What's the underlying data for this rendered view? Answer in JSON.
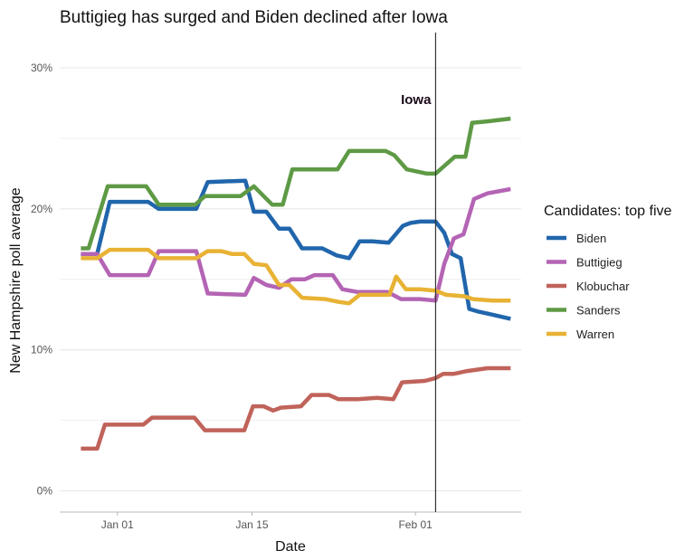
{
  "chart_data": {
    "type": "line",
    "title": "Buttigieg has surged and Biden declined after Iowa",
    "xlabel": "Date",
    "ylabel": "New Hampshire poll average",
    "x_unit": "days since Jan 01",
    "xlim": [
      -6,
      42
    ],
    "ylim": [
      -1.5,
      32.5
    ],
    "grid": true,
    "x_ticks": [
      {
        "value": 0,
        "label": "Jan 01"
      },
      {
        "value": 14,
        "label": "Jan 15"
      },
      {
        "value": 31,
        "label": "Feb 01"
      }
    ],
    "y_ticks": [
      {
        "value": 0,
        "label": "0%"
      },
      {
        "value": 10,
        "label": "10%"
      },
      {
        "value": 20,
        "label": "20%"
      },
      {
        "value": 30,
        "label": "30%"
      }
    ],
    "y_minor_gridlines": [
      5,
      15,
      25
    ],
    "annotations": [
      {
        "type": "vline",
        "x": 33.1,
        "label": "Iowa"
      }
    ],
    "legend": {
      "title": "Candidates: top five",
      "position": "right"
    },
    "series": [
      {
        "name": "Biden",
        "color": "#2166ac",
        "x": [
          -3.8,
          -2.1,
          -0.8,
          3.2,
          4.3,
          8.2,
          9.4,
          13.3,
          14.2,
          15.5,
          16.8,
          17.9,
          19.2,
          21.3,
          22.8,
          24.1,
          25.2,
          26.5,
          28.2,
          29.7,
          30.5,
          31.5,
          32.5,
          33.1,
          34.0,
          34.8,
          35.7,
          36.6,
          37.6,
          39.0,
          40.9
        ],
        "values": [
          16.8,
          16.8,
          20.5,
          20.5,
          20.0,
          20.0,
          21.9,
          22.0,
          19.8,
          19.8,
          18.6,
          18.6,
          17.2,
          17.2,
          16.7,
          16.5,
          17.7,
          17.7,
          17.6,
          18.8,
          19.0,
          19.1,
          19.1,
          19.1,
          18.3,
          16.8,
          16.5,
          12.9,
          12.7,
          12.5,
          12.2
        ]
      },
      {
        "name": "Buttigieg",
        "color": "#b464b4",
        "x": [
          -3.8,
          -2.1,
          -0.8,
          3.2,
          4.3,
          8.2,
          9.4,
          13.3,
          14.2,
          15.5,
          16.8,
          18.1,
          19.5,
          20.5,
          22.4,
          23.4,
          25.0,
          28.1,
          29.5,
          31.5,
          33.1,
          34.0,
          35.0,
          36.0,
          37.1,
          38.5,
          40.9
        ],
        "values": [
          16.8,
          16.8,
          15.3,
          15.3,
          17.0,
          17.0,
          14.0,
          13.9,
          15.1,
          14.6,
          14.4,
          15.0,
          15.0,
          15.3,
          15.3,
          14.3,
          14.1,
          14.1,
          13.6,
          13.6,
          13.5,
          16.1,
          17.9,
          18.2,
          20.7,
          21.1,
          21.4
        ]
      },
      {
        "name": "Klobuchar",
        "color": "#c0635a",
        "x": [
          -3.8,
          -2.1,
          -1.3,
          2.7,
          3.6,
          8.0,
          9.1,
          13.2,
          14.1,
          15.2,
          16.2,
          17.0,
          19.1,
          20.2,
          22.0,
          23.0,
          25.0,
          27.0,
          28.7,
          29.6,
          32.0,
          33.1,
          33.9,
          35.0,
          36.4,
          38.5,
          40.9
        ],
        "values": [
          3.0,
          3.0,
          4.7,
          4.7,
          5.2,
          5.2,
          4.3,
          4.3,
          6.0,
          6.0,
          5.7,
          5.9,
          6.0,
          6.8,
          6.8,
          6.5,
          6.5,
          6.6,
          6.5,
          7.7,
          7.8,
          8.0,
          8.3,
          8.3,
          8.5,
          8.7,
          8.7
        ]
      },
      {
        "name": "Sanders",
        "color": "#5e9a45",
        "x": [
          -3.8,
          -3.0,
          -1.0,
          3.0,
          4.3,
          8.1,
          9.1,
          12.8,
          14.2,
          16.1,
          17.2,
          18.2,
          22.9,
          24.1,
          27.9,
          28.8,
          30.1,
          32.2,
          33.1,
          35.1,
          36.2,
          36.9,
          38.4,
          40.9
        ],
        "values": [
          17.2,
          17.2,
          21.6,
          21.6,
          20.3,
          20.3,
          20.9,
          20.9,
          21.6,
          20.3,
          20.3,
          22.8,
          22.8,
          24.1,
          24.1,
          23.8,
          22.8,
          22.5,
          22.5,
          23.7,
          23.7,
          26.1,
          26.2,
          26.4
        ]
      },
      {
        "name": "Warren",
        "color": "#e8b234",
        "x": [
          -3.8,
          -2.1,
          -0.8,
          3.2,
          4.3,
          8.2,
          9.4,
          10.8,
          11.9,
          13.2,
          14.2,
          15.5,
          16.8,
          17.9,
          19.2,
          21.6,
          23.0,
          24.1,
          25.2,
          28.3,
          29.0,
          30.0,
          31.5,
          33.1,
          34.2,
          36.1,
          37.0,
          39.0,
          40.9
        ],
        "values": [
          16.5,
          16.5,
          17.1,
          17.1,
          16.5,
          16.5,
          17.0,
          17.0,
          16.8,
          16.8,
          16.1,
          16.0,
          14.6,
          14.6,
          13.7,
          13.6,
          13.4,
          13.3,
          13.9,
          13.9,
          15.2,
          14.3,
          14.3,
          14.2,
          13.9,
          13.8,
          13.6,
          13.5,
          13.5
        ]
      }
    ]
  }
}
